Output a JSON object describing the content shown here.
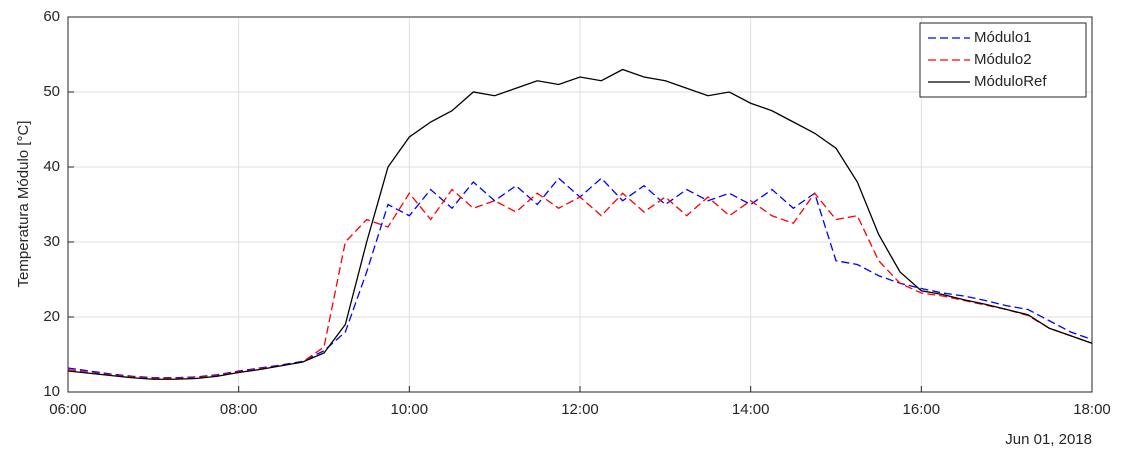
{
  "chart_data": {
    "type": "line",
    "ylabel": "Temperatura Módulo [°C]",
    "date_label": "Jun 01, 2018",
    "x": [
      "06:00",
      "06:15",
      "06:30",
      "06:45",
      "07:00",
      "07:15",
      "07:30",
      "07:45",
      "08:00",
      "08:15",
      "08:30",
      "08:45",
      "09:00",
      "09:15",
      "09:30",
      "09:45",
      "10:00",
      "10:15",
      "10:30",
      "10:45",
      "11:00",
      "11:15",
      "11:30",
      "11:45",
      "12:00",
      "12:15",
      "12:30",
      "12:45",
      "13:00",
      "13:15",
      "13:30",
      "13:45",
      "14:00",
      "14:15",
      "14:30",
      "14:45",
      "15:00",
      "15:15",
      "15:30",
      "15:45",
      "16:00",
      "16:15",
      "16:30",
      "16:45",
      "17:00",
      "17:15",
      "17:30",
      "17:45",
      "18:00"
    ],
    "series": [
      {
        "name": "Módulo1",
        "color": "#0000ff",
        "style": "dashed",
        "values": [
          13.2,
          12.8,
          12.4,
          12.1,
          11.9,
          11.9,
          12.0,
          12.3,
          12.8,
          13.2,
          13.6,
          14.1,
          15.5,
          18.0,
          26.0,
          35.0,
          33.5,
          37.0,
          34.5,
          38.0,
          35.5,
          37.5,
          35.0,
          38.5,
          36.0,
          38.5,
          35.5,
          37.5,
          35.0,
          37.0,
          35.5,
          36.5,
          35.0,
          37.0,
          34.5,
          36.5,
          27.5,
          27.0,
          25.5,
          24.5,
          23.8,
          23.2,
          22.8,
          22.2,
          21.5,
          21.0,
          19.5,
          18.0,
          17.0
        ]
      },
      {
        "name": "Módulo2",
        "color": "#ff0000",
        "style": "dashed",
        "values": [
          13.0,
          12.6,
          12.3,
          12.0,
          11.8,
          11.8,
          11.9,
          12.2,
          12.7,
          13.1,
          13.5,
          14.0,
          16.0,
          30.0,
          33.0,
          32.0,
          36.5,
          33.0,
          37.0,
          34.5,
          35.5,
          34.0,
          36.5,
          34.5,
          36.0,
          33.5,
          36.5,
          34.0,
          36.0,
          33.5,
          36.0,
          33.5,
          35.5,
          33.5,
          32.5,
          36.5,
          33.0,
          33.5,
          27.5,
          24.5,
          23.2,
          22.8,
          22.2,
          21.6,
          21.0,
          20.2,
          18.5,
          17.5,
          16.5
        ]
      },
      {
        "name": "MóduloRef",
        "color": "#000000",
        "style": "solid",
        "values": [
          12.8,
          12.5,
          12.2,
          11.9,
          11.7,
          11.7,
          11.8,
          12.1,
          12.6,
          13.0,
          13.5,
          14.0,
          15.2,
          19.0,
          30.0,
          40.0,
          44.0,
          46.0,
          47.5,
          50.0,
          49.5,
          50.5,
          51.5,
          51.0,
          52.0,
          51.5,
          53.0,
          52.0,
          51.5,
          50.5,
          49.5,
          50.0,
          48.5,
          47.5,
          46.0,
          44.5,
          42.5,
          38.0,
          31.0,
          26.0,
          23.5,
          23.0,
          22.3,
          21.7,
          21.0,
          20.3,
          18.5,
          17.5,
          16.5
        ]
      }
    ],
    "xlim": [
      "06:00",
      "18:00"
    ],
    "xticks": [
      "06:00",
      "08:00",
      "10:00",
      "12:00",
      "14:00",
      "16:00",
      "18:00"
    ],
    "ylim": [
      10,
      60
    ],
    "yticks": [
      10,
      20,
      30,
      40,
      50,
      60
    ],
    "grid": true,
    "legend": "top-right"
  }
}
